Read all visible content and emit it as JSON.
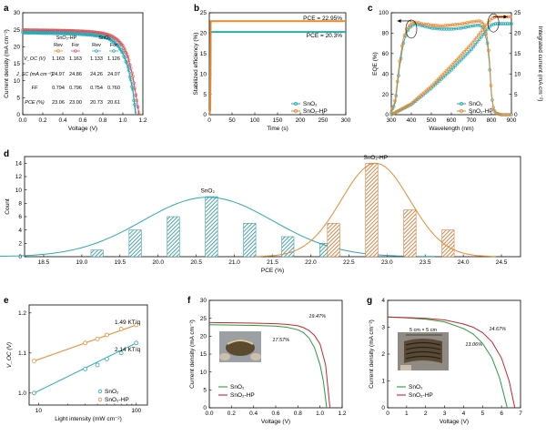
{
  "colors": {
    "teal": "#2aa9b1",
    "orange": "#e8892d",
    "green": "#2a9a3c",
    "red": "#c4262e",
    "pink": "#d6487a",
    "dark": "#333333"
  },
  "chart_data": [
    {
      "panel": "a",
      "type": "line",
      "xlabel": "Voltage (V)",
      "ylabel": "Current density (mA cm⁻²)",
      "xlim": [
        0,
        1.2
      ],
      "ylim": [
        0,
        30
      ],
      "xticks": [
        "0.0",
        "0.2",
        "0.4",
        "0.6",
        "0.8",
        "1.0",
        "1.2"
      ],
      "yticks": [
        "0",
        "5",
        "10",
        "15",
        "20",
        "25",
        "30"
      ],
      "series": [
        {
          "name": "SnO₂-HP Rev",
          "jsc": 24.97,
          "voc": 1.163,
          "x": [
            0,
            0.1,
            0.2,
            0.3,
            0.4,
            0.5,
            0.6,
            0.7,
            0.8,
            0.85,
            0.9,
            0.95,
            1.0,
            1.05,
            1.1,
            1.13,
            1.163
          ],
          "y": [
            24.97,
            24.94,
            24.9,
            24.86,
            24.8,
            24.72,
            24.6,
            24.4,
            24.0,
            23.6,
            23.0,
            22.0,
            20.3,
            17.2,
            11.3,
            6.0,
            0
          ]
        },
        {
          "name": "SnO₂-HP For",
          "jsc": 24.86,
          "voc": 1.163,
          "x": [
            0,
            0.1,
            0.2,
            0.3,
            0.4,
            0.5,
            0.6,
            0.7,
            0.8,
            0.85,
            0.9,
            0.95,
            1.0,
            1.05,
            1.1,
            1.13,
            1.163
          ],
          "y": [
            24.86,
            24.83,
            24.79,
            24.75,
            24.69,
            24.61,
            24.49,
            24.29,
            23.9,
            23.5,
            22.9,
            21.9,
            20.2,
            17.0,
            11.1,
            5.8,
            0
          ]
        },
        {
          "name": "SnO₂ Rev",
          "jsc": 24.26,
          "voc": 1.133,
          "x": [
            0,
            0.1,
            0.2,
            0.3,
            0.4,
            0.5,
            0.6,
            0.7,
            0.8,
            0.85,
            0.9,
            0.95,
            1.0,
            1.05,
            1.1,
            1.133
          ],
          "y": [
            24.26,
            24.22,
            24.17,
            24.11,
            24.04,
            23.94,
            23.8,
            23.57,
            23.1,
            22.6,
            21.8,
            20.5,
            18.3,
            14.5,
            7.5,
            0
          ]
        },
        {
          "name": "SnO₂ For",
          "jsc": 24.07,
          "voc": 1.126,
          "x": [
            0,
            0.1,
            0.2,
            0.3,
            0.4,
            0.5,
            0.6,
            0.7,
            0.8,
            0.85,
            0.9,
            0.95,
            1.0,
            1.05,
            1.1,
            1.126
          ],
          "y": [
            24.07,
            24.03,
            23.98,
            23.92,
            23.85,
            23.75,
            23.6,
            23.37,
            22.9,
            22.4,
            21.6,
            20.3,
            18.0,
            14.1,
            6.8,
            0
          ]
        }
      ],
      "table": {
        "groups": [
          "SnO₂-HP",
          "SnO₂"
        ],
        "cols": [
          "Rev",
          "For",
          "Rev",
          "For"
        ],
        "rows": [
          {
            "label": "V_OC (V)",
            "values": [
              "1.163",
              "1.163",
              "1.133",
              "1.126"
            ]
          },
          {
            "label": "J_SC (mA cm⁻²)",
            "values": [
              "24.97",
              "24.86",
              "24.26",
              "24.07"
            ]
          },
          {
            "label": "FF",
            "values": [
              "0.794",
              "0.796",
              "0.754",
              "0.760"
            ]
          },
          {
            "label": "PCE (%)",
            "values": [
              "23.06",
              "23.00",
              "20.73",
              "20.61"
            ]
          }
        ]
      }
    },
    {
      "panel": "b",
      "type": "line",
      "xlabel": "Time (s)",
      "ylabel": "Stabilized efficiency (%)",
      "xlim": [
        0,
        300
      ],
      "ylim": [
        0,
        25
      ],
      "xticks": [
        "0",
        "50",
        "100",
        "150",
        "200",
        "250",
        "300"
      ],
      "yticks": [
        "0",
        "5",
        "10",
        "15",
        "20",
        "25"
      ],
      "annotations": [
        "PCE = 22.95%",
        "PCE = 20.3%"
      ],
      "series": [
        {
          "name": "SnO₂",
          "x": [
            0,
            2,
            3,
            5,
            300
          ],
          "y": [
            0,
            1.2,
            20.3,
            20.3,
            20.3
          ]
        },
        {
          "name": "SnO₂-HP",
          "x": [
            0,
            2,
            3,
            5,
            300
          ],
          "y": [
            0,
            1.3,
            22.95,
            22.95,
            22.95
          ]
        }
      ]
    },
    {
      "panel": "c",
      "type": "line",
      "xlabel": "Wavelength (nm)",
      "ylabel": "EQE (%)",
      "y2label": "Integrated current (mA cm⁻²)",
      "xlim": [
        300,
        900
      ],
      "ylim": [
        0,
        100
      ],
      "y2lim": [
        0,
        25
      ],
      "xticks": [
        "300",
        "400",
        "500",
        "600",
        "700",
        "800",
        "900"
      ],
      "yticks": [
        "0",
        "20",
        "40",
        "60",
        "80",
        "100"
      ],
      "y2ticks": [
        "0",
        "5",
        "10",
        "15",
        "20",
        "25"
      ],
      "series": [
        {
          "name": "SnO₂",
          "eqe_x": [
            300,
            320,
            340,
            360,
            380,
            400,
            420,
            440,
            460,
            500,
            550,
            600,
            650,
            700,
            740,
            760,
            780,
            790,
            800,
            810,
            820,
            830,
            850,
            900
          ],
          "eqe_y": [
            2,
            12,
            45,
            70,
            82,
            87,
            89,
            88,
            87,
            85,
            84,
            84,
            85,
            87,
            88,
            85,
            70,
            50,
            20,
            6,
            2,
            1,
            0,
            0
          ],
          "int_x": [
            300,
            400,
            500,
            600,
            700,
            780,
            800,
            820,
            900
          ],
          "int_y": [
            0,
            2.5,
            6.5,
            11,
            16,
            21,
            22,
            22.3,
            22.3
          ]
        },
        {
          "name": "SnO₂-HP",
          "eqe_x": [
            300,
            320,
            340,
            360,
            380,
            400,
            420,
            440,
            460,
            500,
            550,
            600,
            650,
            700,
            740,
            760,
            780,
            790,
            800,
            810,
            820,
            830,
            850,
            900
          ],
          "eqe_y": [
            2,
            15,
            50,
            75,
            85,
            90,
            91,
            90,
            89,
            88,
            87,
            88,
            89,
            91,
            92,
            90,
            75,
            55,
            22,
            7,
            2,
            1,
            0,
            0
          ],
          "int_x": [
            300,
            400,
            500,
            600,
            700,
            780,
            800,
            820,
            900
          ],
          "int_y": [
            0,
            2.7,
            7,
            12,
            17.3,
            22.3,
            23.6,
            24,
            24
          ]
        }
      ]
    },
    {
      "panel": "d",
      "type": "bar",
      "xlabel": "PCE (%)",
      "ylabel": "Count",
      "xlim": [
        18.25,
        24.75
      ],
      "ylim": [
        0,
        15
      ],
      "xticks": [
        "18.5",
        "19.0",
        "19.5",
        "20.0",
        "20.5",
        "21.0",
        "21.5",
        "22.0",
        "22.5",
        "23.0",
        "23.5",
        "24.0",
        "24.5"
      ],
      "yticks": [
        "0",
        "2",
        "4",
        "6",
        "8",
        "10",
        "12",
        "14"
      ],
      "series": [
        {
          "name": "SnO₂",
          "bins": [
            19.2,
            19.7,
            20.2,
            20.7,
            21.2,
            21.7,
            22.2
          ],
          "counts": [
            1,
            4,
            6,
            9,
            5,
            3,
            2
          ],
          "fit_mu": 20.65,
          "fit_sigma": 0.85,
          "fit_peak": 8.9
        },
        {
          "name": "SnO₂-HP",
          "bins": [
            22.3,
            22.8,
            23.3,
            23.8
          ],
          "counts": [
            5,
            14,
            7,
            4
          ],
          "fit_mu": 22.85,
          "fit_sigma": 0.45,
          "fit_peak": 14
        }
      ]
    },
    {
      "panel": "e",
      "type": "scatter",
      "xlabel": "Light intensity (mW cm⁻²)",
      "ylabel": "V_OC (V)",
      "xscale": "log",
      "xlim": [
        8,
        130
      ],
      "ylim": [
        0.97,
        1.22
      ],
      "xticks": [
        "10",
        "100"
      ],
      "yticks": [
        "1.0",
        "1.1",
        "1.2"
      ],
      "annotations": [
        "1.49 KT/q",
        "2.14 KT/q"
      ],
      "series": [
        {
          "name": "SnO₂",
          "x": [
            9,
            30,
            40,
            50,
            70,
            100
          ],
          "y": [
            1.0,
            1.06,
            1.07,
            1.085,
            1.1,
            1.125
          ]
        },
        {
          "name": "SnO₂-HP",
          "x": [
            9,
            30,
            40,
            50,
            70,
            100
          ],
          "y": [
            1.08,
            1.125,
            1.135,
            1.145,
            1.16,
            1.17
          ]
        }
      ]
    },
    {
      "panel": "f",
      "type": "line",
      "xlabel": "Voltage (V)",
      "ylabel": "Current density (mA cm⁻²)",
      "xlim": [
        0,
        1.2
      ],
      "ylim": [
        0,
        30
      ],
      "xticks": [
        "0.0",
        "0.2",
        "0.4",
        "0.6",
        "0.8",
        "1.0",
        "1.2"
      ],
      "yticks": [
        "0",
        "5",
        "10",
        "15",
        "20",
        "25",
        "30"
      ],
      "annotations": [
        "17.57%",
        "19.47%"
      ],
      "series": [
        {
          "name": "SnO₂",
          "x": [
            0,
            0.2,
            0.4,
            0.6,
            0.7,
            0.8,
            0.85,
            0.9,
            0.95,
            1.0,
            1.03,
            1.06
          ],
          "y": [
            23.2,
            23.1,
            23.0,
            22.8,
            22.5,
            21.8,
            21.0,
            19.5,
            16.8,
            12.0,
            7.5,
            0
          ]
        },
        {
          "name": "SnO₂-HP",
          "x": [
            0,
            0.2,
            0.4,
            0.6,
            0.7,
            0.8,
            0.85,
            0.9,
            0.95,
            1.0,
            1.05,
            1.09
          ],
          "y": [
            23.8,
            23.75,
            23.65,
            23.5,
            23.3,
            22.9,
            22.4,
            21.6,
            20.2,
            17.8,
            12.0,
            0
          ]
        }
      ]
    },
    {
      "panel": "g",
      "type": "line",
      "xlabel": "Voltage (V)",
      "ylabel": "Current density (mA cm⁻²)",
      "xlim": [
        0,
        7
      ],
      "ylim": [
        0,
        4
      ],
      "xticks": [
        "0",
        "1",
        "2",
        "3",
        "4",
        "5",
        "6",
        "7"
      ],
      "yticks": [
        "0",
        "1",
        "2",
        "3",
        "4"
      ],
      "annotations": [
        "5 cm × 5 cm",
        "13.06%",
        "14.67%"
      ],
      "series": [
        {
          "name": "SnO₂",
          "x": [
            0,
            1,
            2,
            3,
            4,
            4.5,
            5,
            5.5,
            5.9,
            6.3
          ],
          "y": [
            3.38,
            3.35,
            3.3,
            3.2,
            2.95,
            2.75,
            2.4,
            1.85,
            1.1,
            0
          ]
        },
        {
          "name": "SnO₂-HP",
          "x": [
            0,
            1,
            2,
            3,
            4,
            4.5,
            5,
            5.5,
            6,
            6.4,
            6.7
          ],
          "y": [
            3.38,
            3.36,
            3.33,
            3.27,
            3.12,
            3.0,
            2.8,
            2.45,
            1.85,
            1.0,
            0
          ]
        }
      ]
    }
  ]
}
